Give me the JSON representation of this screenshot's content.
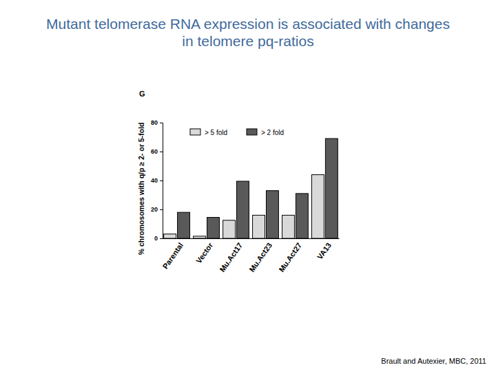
{
  "chart_data": {
    "type": "bar",
    "title": "Mutant telomerase RNA expression is associated with changes in telomere pq-ratios",
    "y_label": "% chromosomes with q/p ≥ 2- or 5-fold",
    "annotations": [
      "G",
      "Brault and Autexier, MBC, 2011"
    ],
    "categories": [
      "Parental",
      "Vector",
      "Mu.Act17",
      "Mu.Act23",
      "Mu.Act27",
      "VA13"
    ],
    "series": [
      {
        "name": "> 5 fold",
        "color": "#d9d9d9",
        "values": [
          3,
          1.5,
          12.5,
          16,
          16,
          44
        ]
      },
      {
        "name": "> 2 fold",
        "color": "#595959",
        "values": [
          18,
          14.5,
          39.5,
          33,
          31,
          69
        ]
      }
    ],
    "ylim": [
      0,
      80
    ],
    "yticks": [
      0,
      20,
      40,
      60,
      80
    ],
    "grid": false,
    "legend": "top"
  }
}
